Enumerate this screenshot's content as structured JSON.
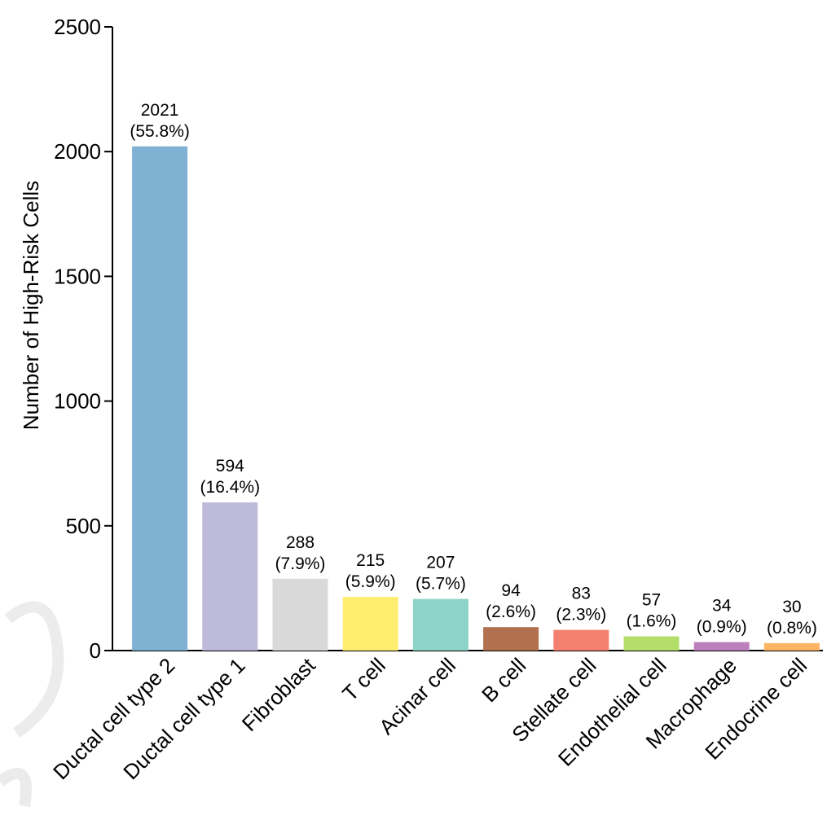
{
  "chart_data": {
    "type": "bar",
    "ylabel": "Number  of High-Risk Cells",
    "ylim": [
      0,
      2500
    ],
    "yticks": [
      0,
      500,
      1000,
      1500,
      2000,
      2500
    ],
    "categories": [
      "Ductal cell type 2",
      "Ductal cell type 1",
      "Fibroblast",
      "T cell",
      "Acinar cell",
      "B cell",
      "Stellate cell",
      "Endothelial cell",
      "Macrophage",
      "Endocrine cell"
    ],
    "values": [
      2021,
      594,
      288,
      215,
      207,
      94,
      83,
      57,
      34,
      30
    ],
    "percent_labels": [
      "(55.8%)",
      "(16.4%)",
      "(7.9%)",
      "(5.9%)",
      "(5.7%)",
      "(2.6%)",
      "(2.3%)",
      "(1.6%)",
      "(0.9%)",
      "(0.8%)"
    ],
    "colors": [
      "#7fb1d3",
      "#bebada",
      "#d9d9d9",
      "#ffed6f",
      "#8dd3c7",
      "#b3704f",
      "#f4806f",
      "#b3de69",
      "#bc80bd",
      "#fdb462"
    ],
    "grid": false,
    "legend": "none"
  }
}
